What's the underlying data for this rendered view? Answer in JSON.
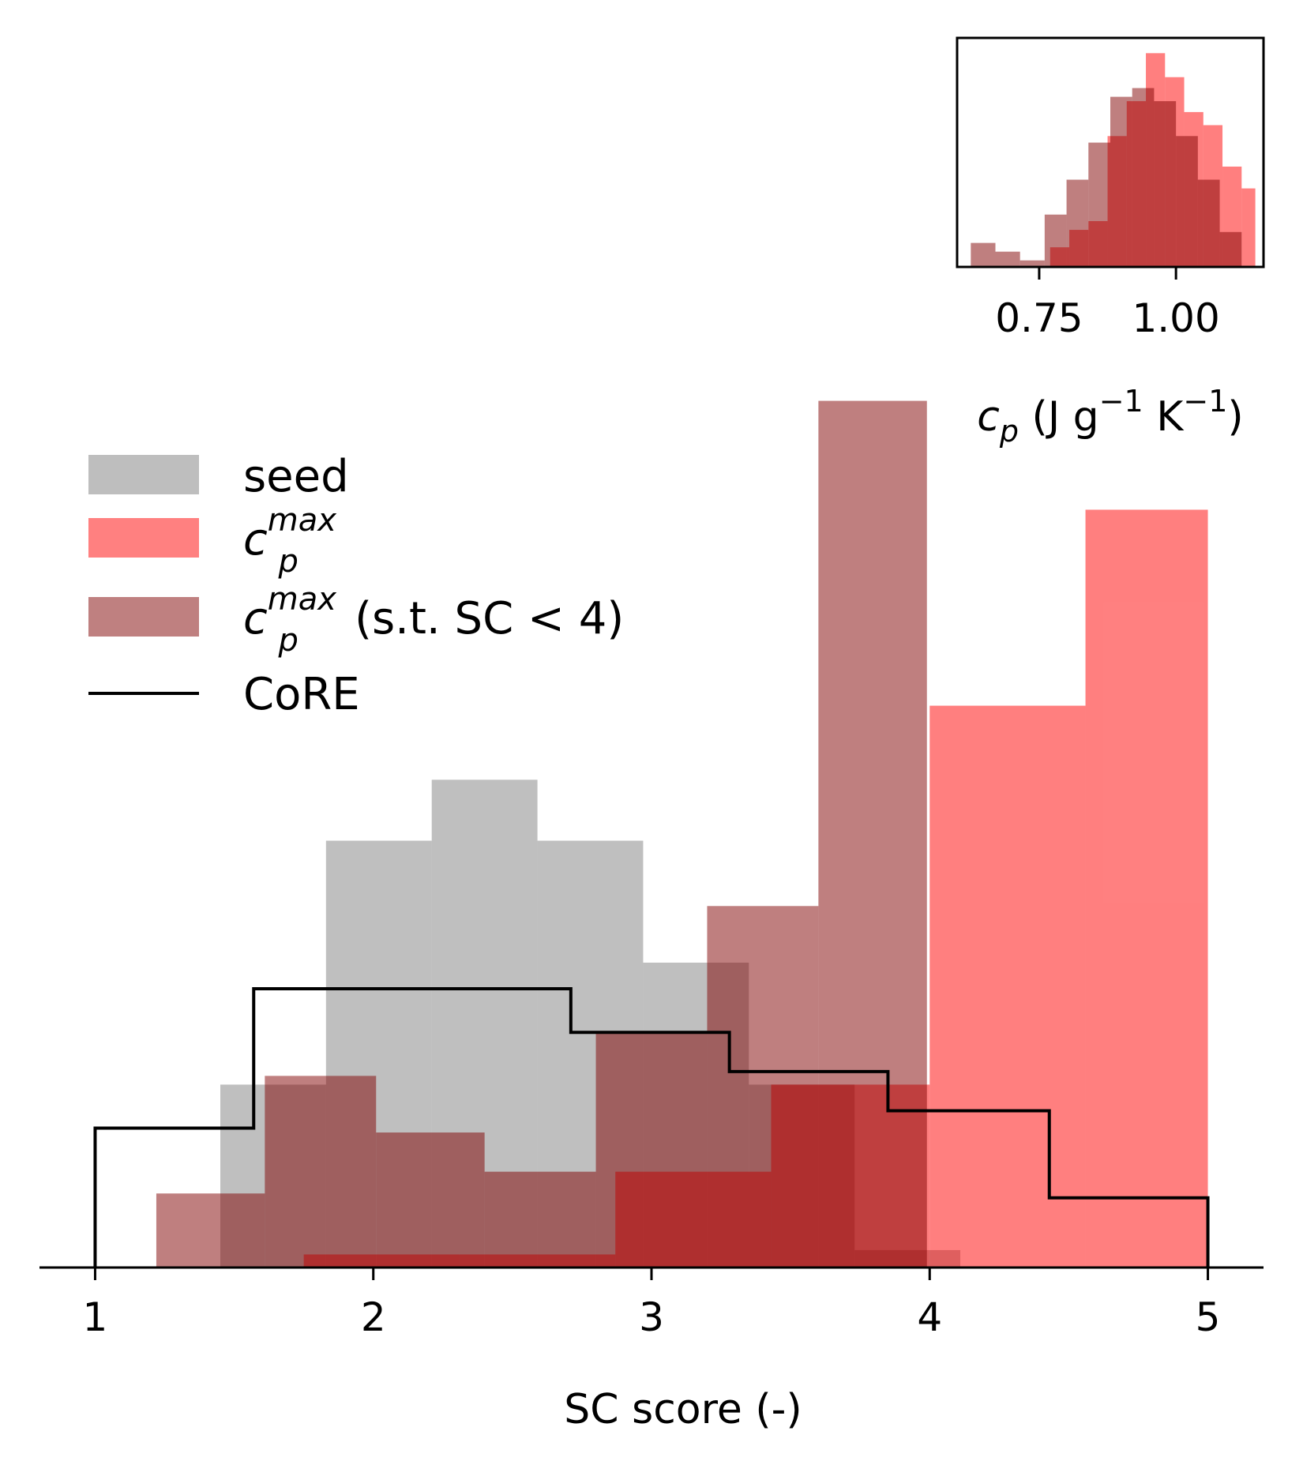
{
  "chart_data": [
    {
      "type": "histogram",
      "xlabel": "SC score (-)",
      "ylabel": "",
      "xlim": [
        0.8,
        5.2
      ],
      "ylim": [
        0,
        10.2
      ],
      "xticks": [
        "1",
        "2",
        "3",
        "4",
        "5"
      ],
      "y_axis_visible": false,
      "legend_placement": "upper-left",
      "series": [
        {
          "name": "seed",
          "style": "filled",
          "color": "#bebebe",
          "bins": [
            {
              "x0": 1.45,
              "x1": 1.83,
              "y": 2.1
            },
            {
              "x0": 1.83,
              "x1": 2.21,
              "y": 4.9
            },
            {
              "x0": 2.21,
              "x1": 2.59,
              "y": 5.6
            },
            {
              "x0": 2.59,
              "x1": 2.97,
              "y": 4.9
            },
            {
              "x0": 2.97,
              "x1": 3.35,
              "y": 3.5
            },
            {
              "x0": 3.35,
              "x1": 3.73,
              "y": 2.1
            },
            {
              "x0": 3.73,
              "x1": 4.11,
              "y": 0.2
            }
          ]
        },
        {
          "name": "c_p^max",
          "name_parts": {
            "base": "c",
            "sub": "p",
            "sup": "max",
            "suffix": ""
          },
          "style": "filled",
          "color": "#ff8080",
          "bins": [
            {
              "x0": 1.75,
              "x1": 2.31,
              "y": 0.15
            },
            {
              "x0": 2.31,
              "x1": 2.87,
              "y": 0.15
            },
            {
              "x0": 2.87,
              "x1": 3.43,
              "y": 1.1
            },
            {
              "x0": 3.43,
              "x1": 4.0,
              "y": 2.1
            },
            {
              "x0": 4.0,
              "x1": 4.56,
              "y": 6.45
            },
            {
              "x0": 4.56,
              "x1": 5.0,
              "y": 8.7
            }
          ]
        },
        {
          "name": "c_p^max (s.t. SC < 4)",
          "name_parts": {
            "base": "c",
            "sub": "p",
            "sup": "max",
            "suffix": " (s.t. SC < 4)"
          },
          "style": "filled",
          "color": "#bf8080",
          "bins": [
            {
              "x0": 1.22,
              "x1": 1.61,
              "y": 0.85
            },
            {
              "x0": 1.61,
              "x1": 2.01,
              "y": 2.2
            },
            {
              "x0": 2.01,
              "x1": 2.4,
              "y": 1.55
            },
            {
              "x0": 2.4,
              "x1": 2.8,
              "y": 1.1
            },
            {
              "x0": 2.8,
              "x1": 3.2,
              "y": 2.7
            },
            {
              "x0": 3.2,
              "x1": 3.6,
              "y": 4.15
            },
            {
              "x0": 3.6,
              "x1": 3.99,
              "y": 9.95
            }
          ]
        },
        {
          "name": "CoRE",
          "style": "step",
          "color": "#000000",
          "bins": [
            {
              "x0": 1.0,
              "x1": 1.57,
              "y": 1.6
            },
            {
              "x0": 1.57,
              "x1": 2.14,
              "y": 3.2
            },
            {
              "x0": 2.14,
              "x1": 2.71,
              "y": 3.2
            },
            {
              "x0": 2.71,
              "x1": 3.28,
              "y": 2.7
            },
            {
              "x0": 3.28,
              "x1": 3.85,
              "y": 2.25
            },
            {
              "x0": 3.85,
              "x1": 4.43,
              "y": 1.8
            },
            {
              "x0": 4.43,
              "x1": 5.0,
              "y": 0.8
            }
          ]
        }
      ]
    },
    {
      "type": "histogram",
      "role": "inset",
      "xlabel_parts": {
        "base": "c",
        "sub": "p",
        "unit_open": " (J g",
        "sup1": "−1",
        "mid": " K",
        "sup2": "−1",
        "unit_close": ")"
      },
      "xlim": [
        0.6,
        1.16
      ],
      "ylim": [
        0,
        1.05
      ],
      "xticks": [
        "0.75",
        "1.00"
      ],
      "y_axis_visible": false,
      "series": [
        {
          "name": "c_p^max",
          "color": "#ff8080",
          "bins": [
            {
              "x0": 0.77,
              "x1": 0.805,
              "y": 0.09
            },
            {
              "x0": 0.805,
              "x1": 0.84,
              "y": 0.17
            },
            {
              "x0": 0.84,
              "x1": 0.875,
              "y": 0.21
            },
            {
              "x0": 0.875,
              "x1": 0.91,
              "y": 0.6
            },
            {
              "x0": 0.91,
              "x1": 0.945,
              "y": 0.76
            },
            {
              "x0": 0.945,
              "x1": 0.98,
              "y": 0.98
            },
            {
              "x0": 0.98,
              "x1": 1.015,
              "y": 0.87
            },
            {
              "x0": 1.015,
              "x1": 1.05,
              "y": 0.71
            },
            {
              "x0": 1.05,
              "x1": 1.085,
              "y": 0.65
            },
            {
              "x0": 1.085,
              "x1": 1.12,
              "y": 0.46
            },
            {
              "x0": 1.12,
              "x1": 1.145,
              "y": 0.36
            }
          ]
        },
        {
          "name": "c_p^max (s.t. SC < 4)",
          "color": "#bf8080",
          "bins": [
            {
              "x0": 0.625,
              "x1": 0.67,
              "y": 0.11
            },
            {
              "x0": 0.67,
              "x1": 0.715,
              "y": 0.07
            },
            {
              "x0": 0.715,
              "x1": 0.76,
              "y": 0.03
            },
            {
              "x0": 0.76,
              "x1": 0.8,
              "y": 0.24
            },
            {
              "x0": 0.8,
              "x1": 0.84,
              "y": 0.4
            },
            {
              "x0": 0.84,
              "x1": 0.88,
              "y": 0.57
            },
            {
              "x0": 0.88,
              "x1": 0.92,
              "y": 0.78
            },
            {
              "x0": 0.92,
              "x1": 0.96,
              "y": 0.82
            },
            {
              "x0": 0.96,
              "x1": 1.0,
              "y": 0.76
            },
            {
              "x0": 1.0,
              "x1": 1.04,
              "y": 0.6
            },
            {
              "x0": 1.04,
              "x1": 1.08,
              "y": 0.4
            },
            {
              "x0": 1.08,
              "x1": 1.12,
              "y": 0.16
            }
          ]
        }
      ]
    }
  ]
}
